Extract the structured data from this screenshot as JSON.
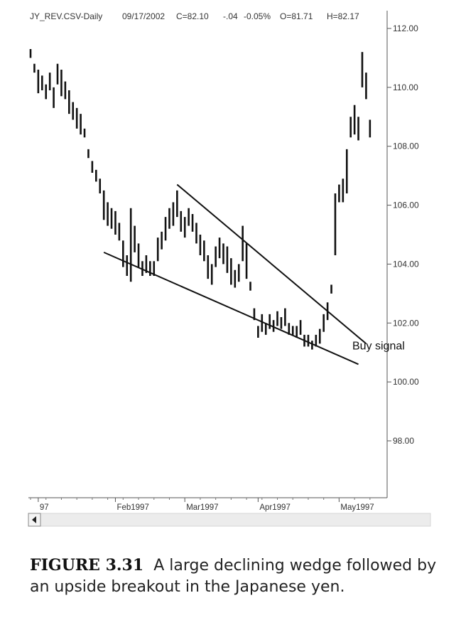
{
  "header": {
    "symbol": "JY_REV.CSV-Daily",
    "date": "09/17/2002",
    "close": "C=82.10",
    "change": "-.04",
    "change_pct": "-0.05%",
    "open": "O=81.71",
    "high": "H=82.17"
  },
  "caption": {
    "label": "FIGURE 3.31",
    "text": "A large declining wedge followed by an upside breakout in the Japanese yen."
  },
  "chart_data": {
    "type": "ohlc",
    "ylim": [
      96.0,
      112.6
    ],
    "y_ticks": [
      {
        "value": 112,
        "label": "112.00"
      },
      {
        "value": 110,
        "label": "110.00"
      },
      {
        "value": 108,
        "label": "108.00"
      },
      {
        "value": 106,
        "label": "106.00"
      },
      {
        "value": 104,
        "label": "104.00"
      },
      {
        "value": 102,
        "label": "102.00"
      },
      {
        "value": 100,
        "label": "100.00"
      },
      {
        "value": 98,
        "label": "98.00"
      }
    ],
    "x_ticks": [
      {
        "index": 2,
        "label": "97"
      },
      {
        "index": 22,
        "label": "Feb1997"
      },
      {
        "index": 40,
        "label": "Mar1997"
      },
      {
        "index": 59,
        "label": "Apr1997"
      },
      {
        "index": 80,
        "label": "May1997"
      }
    ],
    "bars": [
      {
        "high": 111.3,
        "low": 111.0
      },
      {
        "high": 110.8,
        "low": 110.5
      },
      {
        "high": 110.6,
        "low": 109.8
      },
      {
        "high": 110.4,
        "low": 109.9
      },
      {
        "high": 110.1,
        "low": 109.6
      },
      {
        "high": 110.5,
        "low": 109.9
      },
      {
        "high": 110.0,
        "low": 109.3
      },
      {
        "high": 110.8,
        "low": 110.1
      },
      {
        "high": 110.6,
        "low": 109.7
      },
      {
        "high": 110.2,
        "low": 109.6
      },
      {
        "high": 109.9,
        "low": 109.1
      },
      {
        "high": 109.5,
        "low": 108.9
      },
      {
        "high": 109.3,
        "low": 108.6
      },
      {
        "high": 109.1,
        "low": 108.4
      },
      {
        "high": 108.6,
        "low": 108.3
      },
      {
        "high": 107.9,
        "low": 107.6
      },
      {
        "high": 107.5,
        "low": 107.1
      },
      {
        "high": 107.2,
        "low": 106.8
      },
      {
        "high": 106.9,
        "low": 106.4
      },
      {
        "high": 106.5,
        "low": 105.5
      },
      {
        "high": 106.1,
        "low": 105.3
      },
      {
        "high": 105.9,
        "low": 105.2
      },
      {
        "high": 105.8,
        "low": 105.0
      },
      {
        "high": 105.4,
        "low": 104.8
      },
      {
        "high": 104.8,
        "low": 103.9
      },
      {
        "high": 104.3,
        "low": 103.6
      },
      {
        "high": 105.9,
        "low": 103.4
      },
      {
        "high": 105.3,
        "low": 104.4
      },
      {
        "high": 104.7,
        "low": 103.9
      },
      {
        "high": 104.1,
        "low": 103.6
      },
      {
        "high": 104.3,
        "low": 103.7
      },
      {
        "high": 104.1,
        "low": 103.6
      },
      {
        "high": 104.1,
        "low": 103.6
      },
      {
        "high": 104.9,
        "low": 104.1
      },
      {
        "high": 105.1,
        "low": 104.5
      },
      {
        "high": 105.6,
        "low": 104.8
      },
      {
        "high": 105.9,
        "low": 105.2
      },
      {
        "high": 106.1,
        "low": 105.3
      },
      {
        "high": 106.5,
        "low": 105.6
      },
      {
        "high": 105.8,
        "low": 105.1
      },
      {
        "high": 105.6,
        "low": 104.9
      },
      {
        "high": 105.9,
        "low": 105.3
      },
      {
        "high": 105.7,
        "low": 105.1
      },
      {
        "high": 105.4,
        "low": 104.7
      },
      {
        "high": 105.0,
        "low": 104.3
      },
      {
        "high": 104.8,
        "low": 104.1
      },
      {
        "high": 104.3,
        "low": 103.5
      },
      {
        "high": 104.0,
        "low": 103.3
      },
      {
        "high": 104.6,
        "low": 103.9
      },
      {
        "high": 104.9,
        "low": 104.2
      },
      {
        "high": 104.7,
        "low": 104.0
      },
      {
        "high": 104.6,
        "low": 103.7
      },
      {
        "high": 104.2,
        "low": 103.3
      },
      {
        "high": 103.8,
        "low": 103.2
      },
      {
        "high": 104.0,
        "low": 103.4
      },
      {
        "high": 105.3,
        "low": 104.1
      },
      {
        "high": 104.7,
        "low": 103.5
      },
      {
        "high": 103.4,
        "low": 103.1
      },
      {
        "high": 102.5,
        "low": 102.1
      },
      {
        "high": 101.9,
        "low": 101.5
      },
      {
        "high": 102.3,
        "low": 101.7
      },
      {
        "high": 102.0,
        "low": 101.6
      },
      {
        "high": 102.3,
        "low": 101.8
      },
      {
        "high": 102.1,
        "low": 101.7
      },
      {
        "high": 102.4,
        "low": 101.9
      },
      {
        "high": 102.2,
        "low": 101.8
      },
      {
        "high": 102.5,
        "low": 101.9
      },
      {
        "high": 102.0,
        "low": 101.6
      },
      {
        "high": 101.9,
        "low": 101.6
      },
      {
        "high": 101.9,
        "low": 101.5
      },
      {
        "high": 102.1,
        "low": 101.6
      },
      {
        "high": 101.6,
        "low": 101.2
      },
      {
        "high": 101.6,
        "low": 101.2
      },
      {
        "high": 101.4,
        "low": 101.1
      },
      {
        "high": 101.6,
        "low": 101.2
      },
      {
        "high": 101.8,
        "low": 101.3
      },
      {
        "high": 102.3,
        "low": 101.7
      },
      {
        "high": 102.7,
        "low": 102.1
      },
      {
        "high": 103.3,
        "low": 103.0
      },
      {
        "high": 106.4,
        "low": 104.3
      },
      {
        "high": 106.7,
        "low": 106.1
      },
      {
        "high": 106.9,
        "low": 106.1
      },
      {
        "high": 107.9,
        "low": 106.4
      },
      {
        "high": 109.0,
        "low": 108.3
      },
      {
        "high": 109.4,
        "low": 108.4
      },
      {
        "high": 109.0,
        "low": 108.2
      },
      {
        "high": 111.2,
        "low": 110.0
      },
      {
        "high": 110.5,
        "low": 109.6
      },
      {
        "high": 108.9,
        "low": 108.3
      }
    ],
    "trendlines": [
      {
        "name": "upper",
        "x1": 38,
        "y1": 106.7,
        "x2": 87,
        "y2": 101.3
      },
      {
        "name": "lower",
        "x1": 19,
        "y1": 104.4,
        "x2": 85,
        "y2": 100.6
      }
    ],
    "annotations": [
      {
        "text": "Buy signal",
        "index": 86,
        "value": 101.2
      }
    ]
  }
}
